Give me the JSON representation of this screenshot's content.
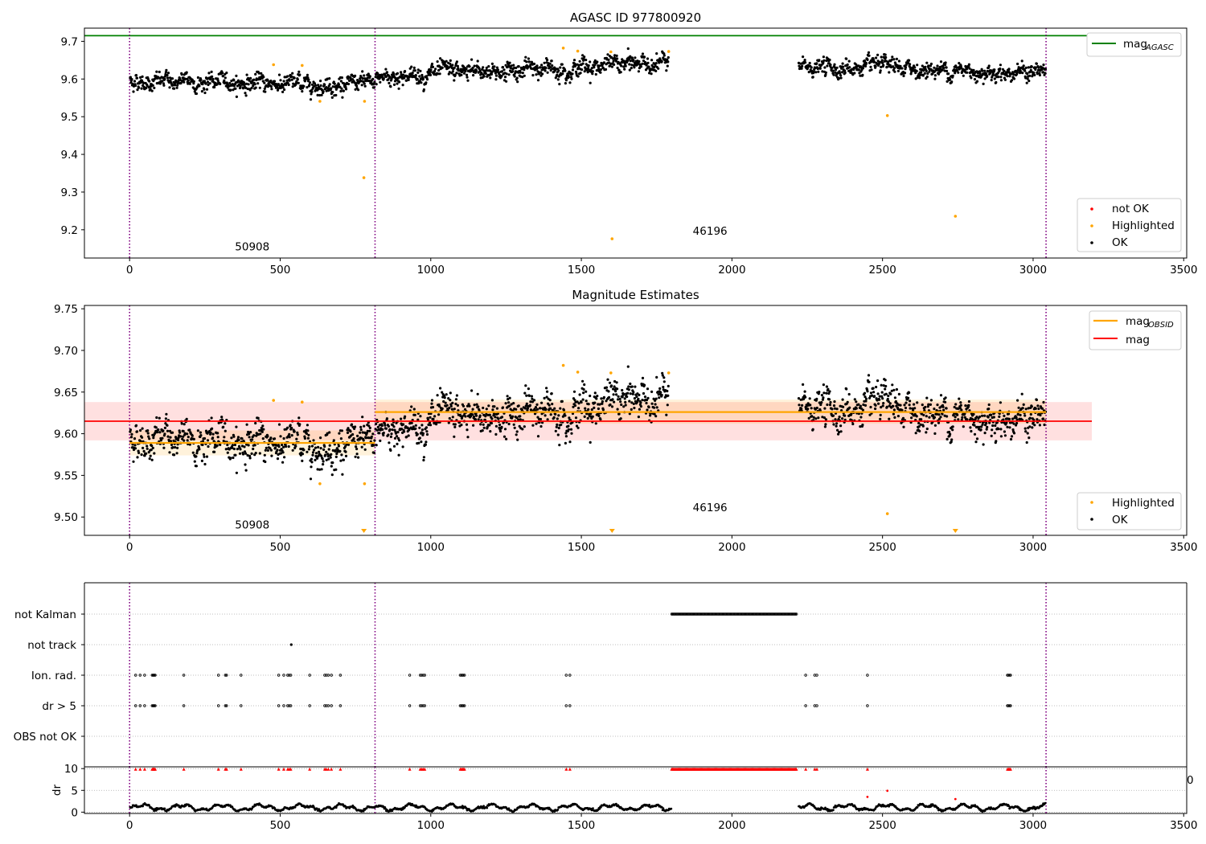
{
  "chart_data": [
    {
      "type": "scatter",
      "title": "AGASC ID 977800920",
      "xlim": [
        -150,
        3510
      ],
      "ylim": [
        9.125,
        9.735
      ],
      "xticks": [
        0,
        500,
        1000,
        1500,
        2000,
        2500,
        3000,
        3500
      ],
      "yticks": [
        9.2,
        9.3,
        9.4,
        9.5,
        9.6,
        9.7
      ],
      "ytick_labels": [
        "9.2",
        "9.3",
        "9.4",
        "9.5",
        "9.6",
        "9.7"
      ],
      "vlines": [
        0,
        815,
        3043
      ],
      "obsid_labels": [
        {
          "x": 350,
          "y": 9.145,
          "text": "50908"
        },
        {
          "x": 1870,
          "y": 9.187,
          "text": "46196"
        }
      ],
      "lines": [
        {
          "name": "mag_AGASC",
          "label_main": "mag",
          "label_sub": "AGASC",
          "y": 9.715,
          "x": [
            -150,
            3195
          ],
          "color": "#008000"
        }
      ],
      "segments": [
        {
          "x": [
            0,
            815
          ],
          "base": [
            9.595,
            9.585
          ],
          "noise": 0.012
        },
        {
          "x": [
            815,
            1790
          ],
          "base": [
            9.605,
            9.645
          ],
          "noise": 0.013
        },
        {
          "x": [
            2220,
            3043
          ],
          "base": [
            9.632,
            9.618
          ],
          "noise": 0.012
        }
      ],
      "highlighted": [
        [
          478,
          9.638
        ],
        [
          573,
          9.636
        ],
        [
          632,
          9.541
        ],
        [
          778,
          9.338
        ],
        [
          780,
          9.541
        ],
        [
          1440,
          9.682
        ],
        [
          1488,
          9.674
        ],
        [
          1598,
          9.672
        ],
        [
          1602,
          9.176
        ],
        [
          1790,
          9.673
        ],
        [
          2516,
          9.503
        ],
        [
          2742,
          9.236
        ]
      ],
      "legend_points": [
        {
          "label": "not OK",
          "color": "#ff0000"
        },
        {
          "label": "Highlighted",
          "color": "#ffa500"
        },
        {
          "label": "OK",
          "color": "#000000"
        }
      ]
    },
    {
      "type": "scatter",
      "title": "Magnitude Estimates",
      "xlim": [
        -150,
        3510
      ],
      "ylim": [
        9.478,
        9.754
      ],
      "xticks": [
        0,
        500,
        1000,
        1500,
        2000,
        2500,
        3000,
        3500
      ],
      "yticks": [
        9.5,
        9.55,
        9.6,
        9.65,
        9.7,
        9.75
      ],
      "ytick_labels": [
        "9.50",
        "9.55",
        "9.60",
        "9.65",
        "9.70",
        "9.75"
      ],
      "vlines": [
        0,
        815,
        3043
      ],
      "obsid_labels": [
        {
          "x": 350,
          "y": 9.486,
          "text": "50908"
        },
        {
          "x": 1870,
          "y": 9.507,
          "text": "46196"
        }
      ],
      "mag": {
        "name": "mag",
        "value": 9.615,
        "band": [
          9.592,
          9.638
        ],
        "x": [
          -150,
          3195
        ],
        "color": "#ff0000"
      },
      "mag_obsid": {
        "name": "mag_OBSID",
        "label_main": "mag",
        "label_sub": "OBSID",
        "color": "#ffa500",
        "items": [
          {
            "x": [
              0,
              815
            ],
            "value": 9.589,
            "band": [
              9.574,
              9.604
            ]
          },
          {
            "x": [
              815,
              3043
            ],
            "value": 9.626,
            "band": [
              9.612,
              9.641
            ]
          }
        ]
      },
      "highlighted": [
        [
          478,
          9.64
        ],
        [
          573,
          9.638
        ],
        [
          632,
          9.54
        ],
        [
          780,
          9.54
        ],
        [
          1440,
          9.682
        ],
        [
          1488,
          9.674
        ],
        [
          1598,
          9.673
        ],
        [
          1790,
          9.673
        ],
        [
          2516,
          9.504
        ]
      ],
      "below_markers": [
        778,
        1602,
        2742
      ],
      "legend_points": [
        {
          "label": "Highlighted",
          "color": "#ffa500"
        },
        {
          "label": "OK",
          "color": "#000000"
        }
      ]
    },
    {
      "type": "scatter",
      "title": "",
      "xlim": [
        -150,
        3510
      ],
      "categories": [
        "not Kalman",
        "not track",
        "Ion. rad.",
        "dr > 5",
        "OBS not OK"
      ],
      "vlines": [
        0,
        815,
        3043
      ],
      "not_kalman_range": [
        1800,
        2215
      ],
      "not_track_points": [
        537
      ],
      "flag_points": [
        20,
        35,
        50,
        75,
        78,
        80,
        82,
        85,
        180,
        295,
        318,
        322,
        370,
        495,
        512,
        525,
        530,
        535,
        598,
        648,
        653,
        660,
        670,
        700,
        930,
        965,
        970,
        975,
        980,
        1098,
        1102,
        1105,
        1108,
        1112,
        1450,
        1462,
        2245,
        2275,
        2282,
        2450,
        2915,
        2918,
        2922,
        2925
      ]
    },
    {
      "type": "scatter",
      "title": "",
      "ylabel": "dr",
      "xlim": [
        -150,
        3510
      ],
      "ylim": [
        -0.3,
        10.4
      ],
      "yticks": [
        0,
        5,
        10
      ],
      "ytick_labels": [
        "0",
        "5",
        "10"
      ],
      "xticks": [
        0,
        500,
        1000,
        1500,
        2000,
        2500,
        3000,
        3500
      ],
      "segments": [
        {
          "x": [
            0,
            815
          ]
        },
        {
          "x": [
            815,
            1800
          ]
        },
        {
          "x": [
            2220,
            3043
          ]
        }
      ],
      "red_outliers": [
        [
          2450,
          3.5
        ],
        [
          2516,
          4.9
        ],
        [
          2742,
          3.0
        ]
      ],
      "marker_y": 9.9,
      "edge_label": "0"
    }
  ]
}
